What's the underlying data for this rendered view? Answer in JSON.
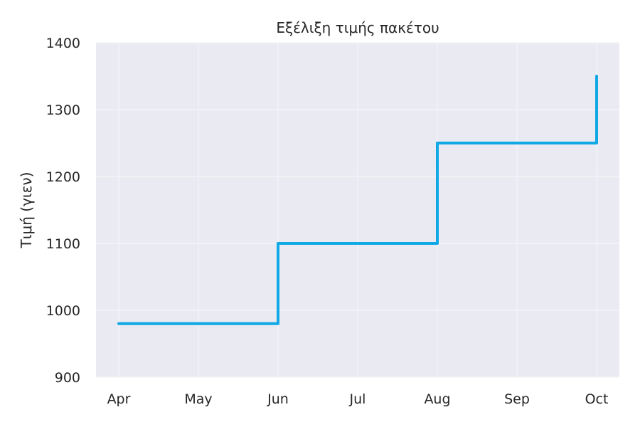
{
  "chart_data": {
    "type": "line",
    "style": "step-post",
    "title": "Εξέλιξη τιμής πακέτου",
    "xlabel": "",
    "ylabel": "Τιμή (γιεν)",
    "categories": [
      "Apr",
      "May",
      "Jun",
      "Jul",
      "Aug",
      "Sep",
      "Oct"
    ],
    "x_ticks": [
      "Apr",
      "May",
      "Jun",
      "Jul",
      "Aug",
      "Sep",
      "Oct"
    ],
    "y_ticks": [
      900,
      1000,
      1100,
      1200,
      1300,
      1400
    ],
    "ylim": [
      900,
      1400
    ],
    "grid": true,
    "series": [
      {
        "name": "Τιμή",
        "color": "#10a9e6",
        "points": [
          {
            "x": "Apr",
            "y": 980
          },
          {
            "x": "Jun",
            "y": 1100
          },
          {
            "x": "Aug",
            "y": 1250
          },
          {
            "x": "Oct",
            "y": 1350
          }
        ],
        "monthly_values": [
          980,
          980,
          1100,
          1100,
          1250,
          1250,
          1350
        ]
      }
    ]
  },
  "colors": {
    "plot_background": "#eaeaf2",
    "grid": "#f5f5f8",
    "line": "#10a9e6",
    "text": "#262626"
  }
}
